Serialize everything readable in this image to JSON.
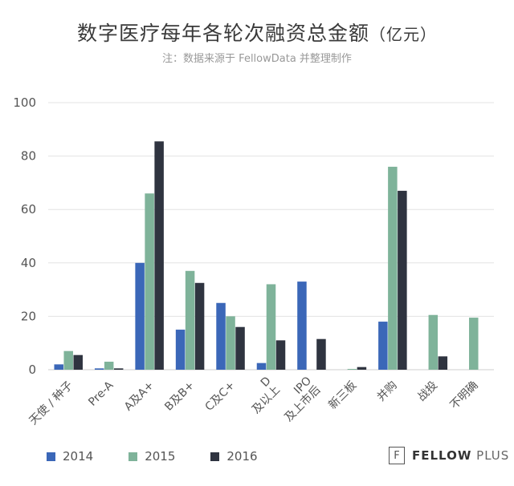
{
  "header": {
    "title": "数字医疗每年各轮次融资总金额",
    "title_unit": "（亿元）",
    "note": "注：数据来源于 FellowData 并整理制作"
  },
  "brand": {
    "icon": "F",
    "name_bold": "FELLOW",
    "name_light": "PLUS"
  },
  "colors": {
    "2014": "#3b67b8",
    "2015": "#7fb39a",
    "2016": "#2f3440",
    "grid": "#e3e3e3"
  },
  "chart_data": {
    "type": "bar",
    "title": "数字医疗每年各轮次融资总金额（亿元）",
    "categories": [
      "天使 / 种子",
      "Pre-A",
      "A及A+",
      "B及B+",
      "C及C+",
      "D\n及以上",
      "IPO\n及上市后",
      "新三板",
      "并购",
      "战投",
      "不明确"
    ],
    "series": [
      {
        "name": "2014",
        "values": [
          2,
          0.5,
          40,
          15,
          25,
          2.5,
          33,
          0,
          18,
          0,
          0
        ]
      },
      {
        "name": "2015",
        "values": [
          7,
          3,
          66,
          37,
          20,
          32,
          0,
          0.3,
          76,
          20.5,
          19.5
        ]
      },
      {
        "name": "2016",
        "values": [
          5.5,
          0.5,
          85.5,
          32.5,
          16,
          11,
          11.5,
          1,
          67,
          5,
          0
        ]
      }
    ],
    "yticks": [
      0,
      20,
      40,
      60,
      80,
      100
    ],
    "ylim": [
      0,
      100
    ],
    "legend": "bottom-left",
    "grid": true
  }
}
